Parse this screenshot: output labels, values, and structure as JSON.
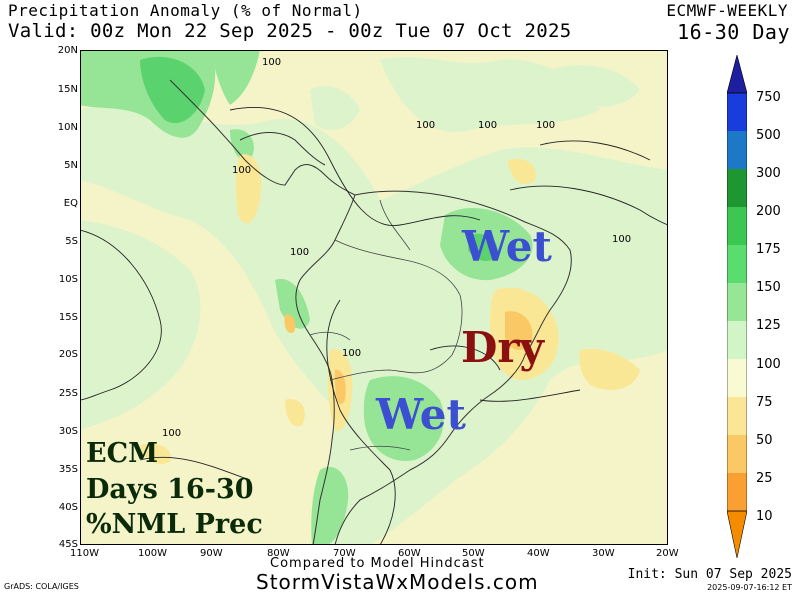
{
  "header": {
    "title": "Precipitation Anomaly (% of Normal)",
    "valid": "Valid: 00z Mon 22 Sep 2025 - 00z Tue 07 Oct 2025",
    "model": "ECMWF-WEEKLY",
    "period": "16-30 Day"
  },
  "map": {
    "lat_labels": [
      "20N",
      "15N",
      "10N",
      "5N",
      "EQ",
      "5S",
      "10S",
      "15S",
      "20S",
      "25S",
      "30S",
      "35S",
      "40S",
      "45S"
    ],
    "lon_labels": [
      "110W",
      "100W",
      "90W",
      "80W",
      "70W",
      "60W",
      "50W",
      "40W",
      "30W",
      "20W"
    ],
    "contour_labels": [
      "100",
      "100",
      "100",
      "100",
      "100",
      "100",
      "100",
      "100",
      "100"
    ],
    "annotations": {
      "wet_north": "Wet",
      "dry": "Dry",
      "wet_south": "Wet"
    },
    "box_text": [
      "ECM",
      "Days 16-30",
      "%NML Prec"
    ]
  },
  "colorbar": {
    "labels": [
      "750",
      "500",
      "300",
      "200",
      "175",
      "150",
      "125",
      "100",
      "75",
      "50",
      "25",
      "10"
    ],
    "colors": [
      "#1e1ea0",
      "#1a3cdc",
      "#1e78c8",
      "#1e9632",
      "#3cc850",
      "#5adc6e",
      "#96e696",
      "#d2f5c8",
      "#fafad2",
      "#fae696",
      "#fac864",
      "#faa032",
      "#f58c00"
    ]
  },
  "footer": {
    "compared": "Compared to Model Hindcast",
    "site": "StormVistaWxModels.com",
    "credit": "GrADS: COLA/IGES",
    "init": "Init: Sun 07 Sep 2025",
    "stamp": "2025-09-07-16:12 ET"
  }
}
